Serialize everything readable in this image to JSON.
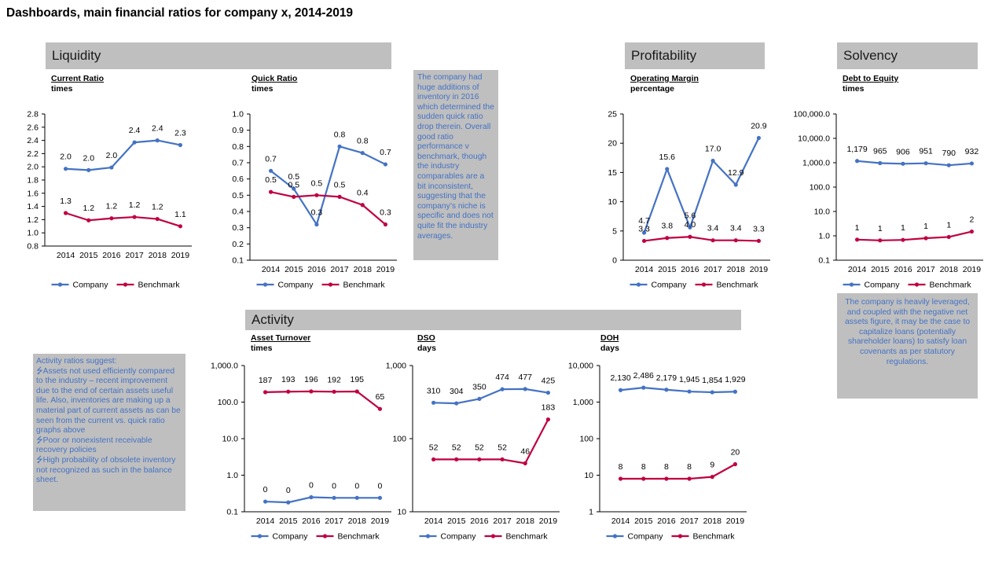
{
  "page": {
    "title": "Dashboards, main financial ratios for company x, 2014-2019"
  },
  "sections": {
    "liquidity": "Liquidity",
    "profitability": "Profitability",
    "solvency": "Solvency",
    "activity": "Activity"
  },
  "notes": {
    "liquidity": "The company had huge additions of inventory in 2016 which determined the sudden quick ratio drop therein. Overall good ratio performance v benchmark, though the industry comparables are a bit inconsistent, suggesting that the company’s niche is specific and does not quite fit the industry averages.",
    "solvency": "The company is heavily leveraged, and coupled with the negative net assets figure, it may be the case to capitalize loans (potentially shareholder loans) to satisfy loan covenants as per statutory regulations.",
    "activity_intro": "Activity ratios suggest:",
    "activity_bullets": [
      "Assets not used efficiently compared to the industry – recent improvement due to the end of certain assets useful life. Also, inventories are making up a material part of current assets as can be seen from the current vs. quick ratio graphs above",
      "Poor or nonexistent receivable recovery policies",
      "High probability of obsolete inventory not recognized as such in the balance sheet."
    ],
    "bullet_glyph": "⭍"
  },
  "colors": {
    "company": "#4472c4",
    "benchmark": "#c00040",
    "section_bg": "#bfbfbf",
    "note_text": "#4472c4"
  },
  "legend": {
    "company": "Company",
    "benchmark": "Benchmark"
  },
  "chart_data": [
    {
      "id": "current-ratio",
      "type": "line",
      "title": "Current Ratio",
      "unit": "times",
      "categories": [
        "2014",
        "2015",
        "2016",
        "2017",
        "2018",
        "2019"
      ],
      "yscale": "linear",
      "ylim": [
        0.8,
        2.8
      ],
      "yticks": [
        0.8,
        1.0,
        1.2,
        1.4,
        1.6,
        1.8,
        2.0,
        2.2,
        2.4,
        2.6,
        2.8
      ],
      "ytick_labels": [
        "0.8",
        "1.0",
        "1.2",
        "1.4",
        "1.6",
        "1.8",
        "2.0",
        "2.2",
        "2.4",
        "2.6",
        "2.8"
      ],
      "series": [
        {
          "name": "Company",
          "values": [
            1.97,
            1.95,
            1.99,
            2.37,
            2.4,
            2.33
          ],
          "labels": [
            "2.0",
            "2.0",
            "2.0",
            "2.4",
            "2.4",
            "2.3"
          ]
        },
        {
          "name": "Benchmark",
          "values": [
            1.3,
            1.19,
            1.22,
            1.24,
            1.21,
            1.1
          ],
          "labels": [
            "1.3",
            "1.2",
            "1.2",
            "1.2",
            "1.2",
            "1.1"
          ]
        }
      ],
      "legend": "bottom"
    },
    {
      "id": "quick-ratio",
      "type": "line",
      "title": "Quick Ratio",
      "unit": "times",
      "categories": [
        "2014",
        "2015",
        "2016",
        "2017",
        "2018",
        "2019"
      ],
      "yscale": "linear",
      "ylim": [
        0.1,
        1.0
      ],
      "yticks": [
        0.1,
        0.2,
        0.3,
        0.4,
        0.5,
        0.6,
        0.7,
        0.8,
        0.9,
        1.0
      ],
      "ytick_labels": [
        "0.1",
        "0.2",
        "0.3",
        "0.4",
        "0.5",
        "0.6",
        "0.7",
        "0.8",
        "0.9",
        "1.0"
      ],
      "series": [
        {
          "name": "Company",
          "values": [
            0.65,
            0.54,
            0.32,
            0.8,
            0.76,
            0.69
          ],
          "labels": [
            "0.7",
            "0.5",
            "0.3",
            "0.8",
            "0.8",
            "0.7"
          ]
        },
        {
          "name": "Benchmark",
          "values": [
            0.52,
            0.49,
            0.5,
            0.49,
            0.44,
            0.32
          ],
          "labels": [
            "0.5",
            "0.5",
            "0.5",
            "0.5",
            "0.4",
            "0.3"
          ]
        }
      ],
      "legend": "bottom"
    },
    {
      "id": "operating-margin",
      "type": "line",
      "title": "Operating Margin",
      "unit": "percentage",
      "categories": [
        "2014",
        "2015",
        "2016",
        "2017",
        "2018",
        "2019"
      ],
      "yscale": "linear",
      "ylim": [
        0,
        25
      ],
      "yticks": [
        0,
        5,
        10,
        15,
        20,
        25
      ],
      "ytick_labels": [
        "0",
        "5",
        "10",
        "15",
        "20",
        "25"
      ],
      "series": [
        {
          "name": "Company",
          "values": [
            4.7,
            15.6,
            5.6,
            17.0,
            12.9,
            20.9
          ],
          "labels": [
            "4.7",
            "15.6",
            "5.6",
            "17.0",
            "12.9",
            "20.9"
          ]
        },
        {
          "name": "Benchmark",
          "values": [
            3.3,
            3.8,
            4.0,
            3.4,
            3.4,
            3.3
          ],
          "labels": [
            "3.3",
            "3.8",
            "4.0",
            "3.4",
            "3.4",
            "3.3"
          ]
        }
      ],
      "legend": "bottom"
    },
    {
      "id": "debt-to-equity",
      "type": "line",
      "title": "Debt to Equity",
      "unit": "times",
      "categories": [
        "2014",
        "2015",
        "2016",
        "2017",
        "2018",
        "2019"
      ],
      "yscale": "log",
      "ylim": [
        0.1,
        100000
      ],
      "yticks": [
        0.1,
        1,
        10,
        100,
        1000,
        10000,
        100000
      ],
      "ytick_labels": [
        "0.1",
        "1.0",
        "10.0",
        "100.0",
        "1,000.0",
        "10,000.0",
        "100,000.0"
      ],
      "series": [
        {
          "name": "Company",
          "values": [
            1179,
            965,
            906,
            951,
            790,
            932
          ],
          "labels": [
            "1,179",
            "965",
            "906",
            "951",
            "790",
            "932"
          ]
        },
        {
          "name": "Benchmark",
          "values": [
            0.7,
            0.65,
            0.68,
            0.8,
            0.9,
            1.5
          ],
          "labels": [
            "1",
            "1",
            "1",
            "1",
            "1",
            "2"
          ]
        }
      ],
      "legend": "bottom"
    },
    {
      "id": "asset-turnover",
      "type": "line",
      "title": "Asset Turnover",
      "unit": "times",
      "categories": [
        "2014",
        "2015",
        "2016",
        "2017",
        "2018",
        "2019"
      ],
      "yscale": "log",
      "ylim": [
        0.1,
        1000
      ],
      "yticks": [
        0.1,
        1,
        10,
        100,
        1000
      ],
      "ytick_labels": [
        "0.1",
        "1.0",
        "10.0",
        "100.0",
        "1,000.0"
      ],
      "series": [
        {
          "name": "Company",
          "values": [
            0.19,
            0.18,
            0.25,
            0.24,
            0.24,
            0.24
          ],
          "labels": [
            "0",
            "0",
            "0",
            "0",
            "0",
            "0"
          ]
        },
        {
          "name": "Benchmark",
          "values": [
            187,
            193,
            196,
            192,
            195,
            65
          ],
          "labels": [
            "187",
            "193",
            "196",
            "192",
            "195",
            "65"
          ]
        }
      ],
      "legend": "bottom"
    },
    {
      "id": "dso",
      "type": "line",
      "title": "DSO",
      "unit": "days",
      "categories": [
        "2014",
        "2015",
        "2016",
        "2017",
        "2018",
        "2019"
      ],
      "yscale": "log",
      "ylim": [
        10,
        1000
      ],
      "yticks": [
        10,
        100,
        1000
      ],
      "ytick_labels": [
        "10",
        "100",
        "1,000"
      ],
      "series": [
        {
          "name": "Company",
          "values": [
            310,
            304,
            350,
            474,
            477,
            425
          ],
          "labels": [
            "310",
            "304",
            "350",
            "474",
            "477",
            "425"
          ]
        },
        {
          "name": "Benchmark",
          "values": [
            52,
            52,
            52,
            52,
            46,
            183
          ],
          "labels": [
            "52",
            "52",
            "52",
            "52",
            "46",
            "183"
          ]
        }
      ],
      "legend": "bottom"
    },
    {
      "id": "doh",
      "type": "line",
      "title": "DOH",
      "unit": "days",
      "categories": [
        "2014",
        "2015",
        "2016",
        "2017",
        "2018",
        "2019"
      ],
      "yscale": "log",
      "ylim": [
        1,
        10000
      ],
      "yticks": [
        1,
        10,
        100,
        1000,
        10000
      ],
      "ytick_labels": [
        "1",
        "10",
        "100",
        "1,000",
        "10,000"
      ],
      "series": [
        {
          "name": "Company",
          "values": [
            2130,
            2486,
            2179,
            1945,
            1854,
            1929
          ],
          "labels": [
            "2,130",
            "2,486",
            "2,179",
            "1,945",
            "1,854",
            "1,929"
          ]
        },
        {
          "name": "Benchmark",
          "values": [
            8,
            8,
            8,
            8,
            9,
            20
          ],
          "labels": [
            "8",
            "8",
            "8",
            "8",
            "9",
            "20"
          ]
        }
      ],
      "legend": "bottom"
    }
  ]
}
